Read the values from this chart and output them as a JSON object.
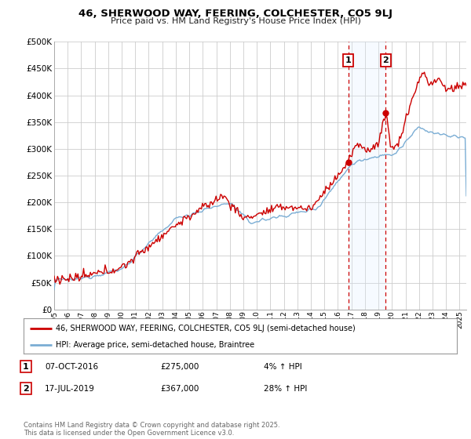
{
  "title": "46, SHERWOOD WAY, FEERING, COLCHESTER, CO5 9LJ",
  "subtitle": "Price paid vs. HM Land Registry's House Price Index (HPI)",
  "legend_line1": "46, SHERWOOD WAY, FEERING, COLCHESTER, CO5 9LJ (semi-detached house)",
  "legend_line2": "HPI: Average price, semi-detached house, Braintree",
  "footer": "Contains HM Land Registry data © Crown copyright and database right 2025.\nThis data is licensed under the Open Government Licence v3.0.",
  "sale1_label": "1",
  "sale1_date": "07-OCT-2016",
  "sale1_price": "£275,000",
  "sale1_hpi": "4% ↑ HPI",
  "sale1_year": 2016.77,
  "sale1_value": 275000,
  "sale2_label": "2",
  "sale2_date": "17-JUL-2019",
  "sale2_price": "£367,000",
  "sale2_hpi": "28% ↑ HPI",
  "sale2_year": 2019.54,
  "sale2_value": 367000,
  "red_color": "#cc0000",
  "blue_color": "#7aadd4",
  "span_color": "#ddeeff",
  "ylim_min": 0,
  "ylim_max": 500000,
  "xlim_min": 1995,
  "xlim_max": 2025.5,
  "background_color": "#ffffff",
  "grid_color": "#cccccc"
}
